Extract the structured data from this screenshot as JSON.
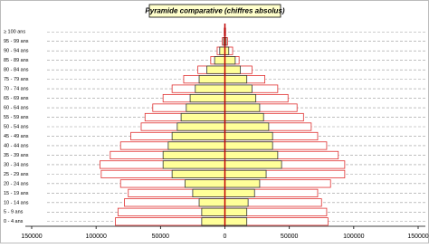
{
  "chart_data": {
    "type": "pyramid",
    "title": "Pyramide comparative (chiffres absolus)",
    "categories": [
      "0 - 4 ans",
      "5 - 9 ans",
      "10 - 14 ans",
      "15 - 19 ans",
      "20 - 24 ans",
      "25 - 29 ans",
      "30 - 34 ans",
      "35 - 39 ans",
      "40 - 44 ans",
      "45 - 49 ans",
      "50 - 54 ans",
      "55 - 59 ans",
      "60 - 64 ans",
      "65 - 69 ans",
      "70 - 74 ans",
      "75 - 79 ans",
      "80 - 84 ans",
      "85 - 89 ans",
      "90 - 94 ans",
      "95 - 99 ans",
      "≥ 100 ans"
    ],
    "series": [
      {
        "color": "#e03030",
        "fill": "#ffffff",
        "values": [
          -85000,
          -83000,
          -78000,
          -75000,
          -81000,
          -96000,
          -97000,
          -89000,
          -81000,
          -73000,
          -65000,
          -62000,
          -56000,
          -48000,
          -41000,
          -32000,
          -21000,
          -11000,
          -6000,
          -2000,
          -500
        ]
      },
      {
        "color": "#e03030",
        "fill": "#ffffff",
        "values": [
          80000,
          79000,
          75000,
          72000,
          82000,
          93000,
          93000,
          88000,
          79000,
          72000,
          67000,
          61000,
          56000,
          49000,
          41000,
          31000,
          21000,
          11000,
          6000,
          2000,
          500
        ]
      },
      {
        "color": "#333333",
        "fill": "#ffff99",
        "values": [
          -18000,
          -18000,
          -20000,
          -25000,
          -31000,
          -41000,
          -48000,
          -48000,
          -44000,
          -41000,
          -37000,
          -34000,
          -30000,
          -27000,
          -23000,
          -20000,
          -14000,
          -8000,
          -4000,
          -1000,
          -200
        ]
      },
      {
        "color": "#333333",
        "fill": "#ffff99",
        "values": [
          17000,
          17000,
          18000,
          23000,
          27000,
          32000,
          44000,
          41000,
          37000,
          37000,
          34000,
          30000,
          27000,
          24000,
          21000,
          17000,
          12000,
          8000,
          3000,
          1000,
          200
        ]
      }
    ],
    "xlim": [
      -150000,
      150000
    ],
    "xticks": [
      {
        "value": -150000,
        "label": "150000"
      },
      {
        "value": -100000,
        "label": "100000"
      },
      {
        "value": -50000,
        "label": "50000"
      },
      0,
      50000,
      100000,
      150000
    ],
    "center_line_color": "#c00000"
  }
}
